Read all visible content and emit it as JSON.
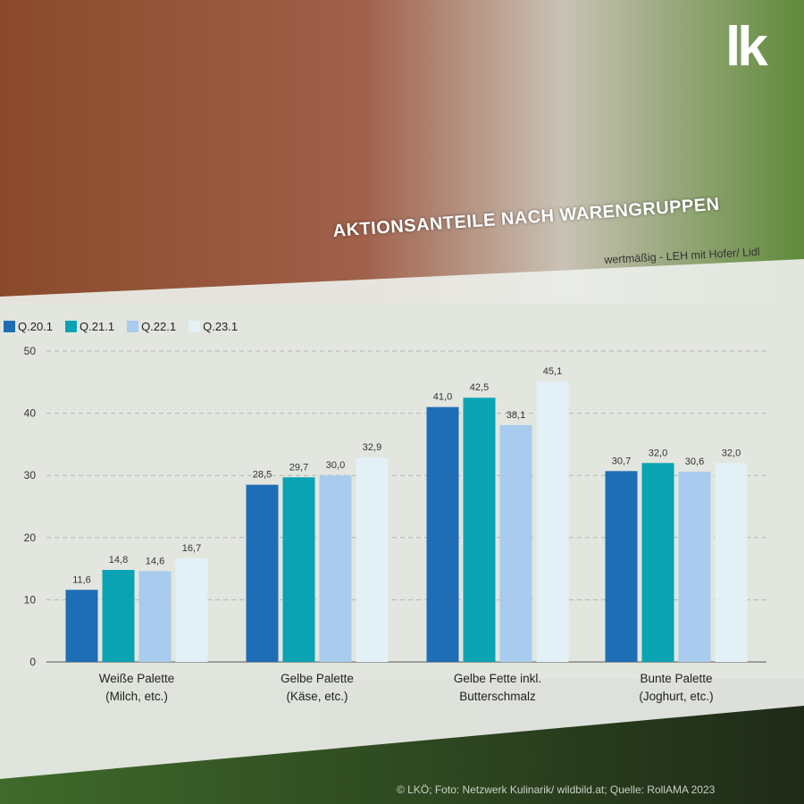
{
  "title": "AKTIONSANTEILE NACH WARENGRUPPEN",
  "subtitle": "wertmäßig - LEH mit Hofer/ Lidl",
  "logo": "lk",
  "credit": "© LKÖ; Foto: Netzwerk Kulinarik/ wildbild.at; Quelle: RollAMA 2023",
  "chart_data": {
    "type": "bar",
    "categories": [
      [
        "Weiße Palette",
        "(Milch, etc.)"
      ],
      [
        "Gelbe Palette",
        "(Käse, etc.)"
      ],
      [
        "Gelbe Fette inkl.",
        "Butterschmalz"
      ],
      [
        "Bunte Palette",
        "(Joghurt, etc.)"
      ]
    ],
    "series": [
      {
        "name": "Q.20.1",
        "color": "#1f6db5",
        "values": [
          11.6,
          28.5,
          41.0,
          30.7
        ],
        "labels": [
          "11,6",
          "28,5",
          "41,0",
          "30,7"
        ]
      },
      {
        "name": "Q.21.1",
        "color": "#0aa3b3",
        "values": [
          14.8,
          29.7,
          42.5,
          32.0
        ],
        "labels": [
          "14,8",
          "29,7",
          "42,5",
          "32,0"
        ]
      },
      {
        "name": "Q.22.1",
        "color": "#a8cbee",
        "values": [
          14.6,
          30.0,
          38.1,
          30.6
        ],
        "labels": [
          "14,6",
          "30,0",
          "38,1",
          "30,6"
        ]
      },
      {
        "name": "Q.23.1",
        "color": "#e3f1f6",
        "values": [
          16.7,
          32.9,
          45.1,
          32.0
        ],
        "labels": [
          "16,7",
          "32,9",
          "45,1",
          "32,0"
        ]
      }
    ],
    "ylim": [
      0,
      50
    ],
    "yticks": [
      0,
      10,
      20,
      30,
      40,
      50
    ],
    "grid": true,
    "legend_position": "top-left"
  }
}
